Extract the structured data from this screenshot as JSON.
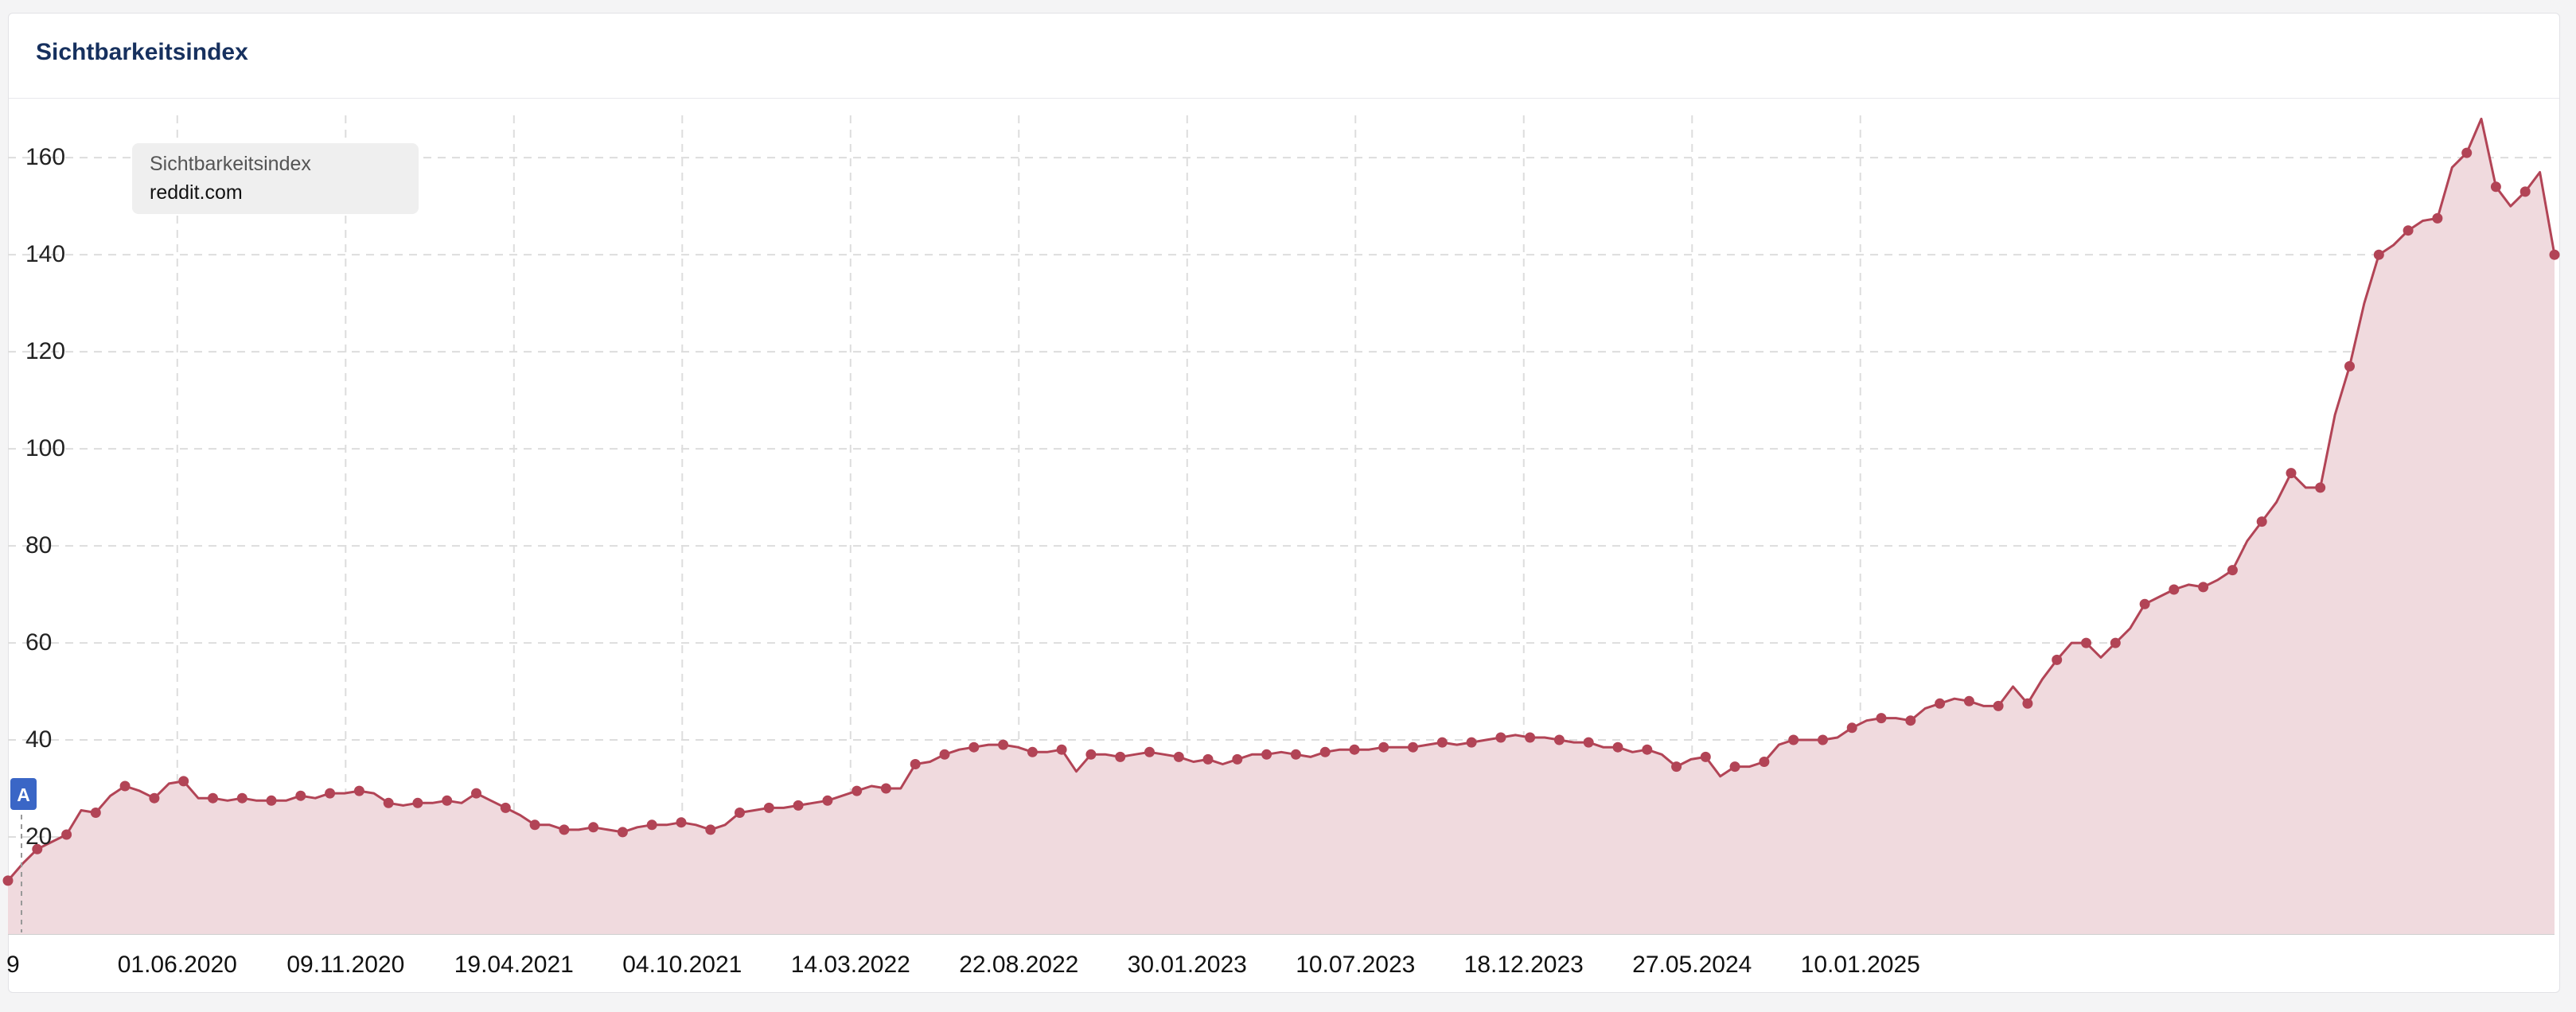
{
  "card": {
    "title": "Sichtbarkeitsindex"
  },
  "legend": {
    "line1": "Sichtbarkeitsindex",
    "line2": "reddit.com"
  },
  "event_marker": {
    "label": "A"
  },
  "colors": {
    "line": "#b24456",
    "fill": "#f0dade",
    "title": "#16305e",
    "marker": "#3a66c6"
  },
  "chart_data": {
    "type": "area",
    "title": "Sichtbarkeitsindex",
    "xlabel": "",
    "ylabel": "",
    "ylim": [
      0,
      172
    ],
    "yticks": [
      20,
      40,
      60,
      80,
      100,
      120,
      140,
      160
    ],
    "xticks": [
      "01.06.2020",
      "09.11.2020",
      "19.04.2021",
      "04.10.2021",
      "14.03.2022",
      "22.08.2022",
      "30.01.2023",
      "10.07.2023",
      "18.12.2023",
      "27.05.2024",
      "10.01.2025"
    ],
    "first_tick_partial": "9",
    "grid": true,
    "legend_placement": "top-left",
    "series": [
      {
        "name": "reddit.com",
        "points": [
          [
            "2019-12-22",
            11
          ],
          [
            "2020-01-05",
            14.5
          ],
          [
            "2020-01-19",
            17.5
          ],
          [
            "2020-02-02",
            19
          ],
          [
            "2020-02-16",
            20.5
          ],
          [
            "2020-03-01",
            25.5
          ],
          [
            "2020-03-15",
            25
          ],
          [
            "2020-03-29",
            28.5
          ],
          [
            "2020-04-12",
            30.5
          ],
          [
            "2020-04-26",
            29.5
          ],
          [
            "2020-05-10",
            28
          ],
          [
            "2020-05-24",
            31
          ],
          [
            "2020-06-07",
            31.5
          ],
          [
            "2020-06-21",
            28
          ],
          [
            "2020-07-05",
            28
          ],
          [
            "2020-07-19",
            27.5
          ],
          [
            "2020-08-02",
            28
          ],
          [
            "2020-08-16",
            27.5
          ],
          [
            "2020-08-30",
            27.5
          ],
          [
            "2020-09-13",
            27.5
          ],
          [
            "2020-09-27",
            28.5
          ],
          [
            "2020-10-11",
            28
          ],
          [
            "2020-10-25",
            29
          ],
          [
            "2020-11-08",
            29
          ],
          [
            "2020-11-22",
            29.5
          ],
          [
            "2020-12-06",
            29
          ],
          [
            "2020-12-20",
            27
          ],
          [
            "2021-01-03",
            26.5
          ],
          [
            "2021-01-17",
            27
          ],
          [
            "2021-01-31",
            27
          ],
          [
            "2021-02-14",
            27.5
          ],
          [
            "2021-02-28",
            27
          ],
          [
            "2021-03-14",
            29
          ],
          [
            "2021-03-28",
            27.5
          ],
          [
            "2021-04-11",
            26
          ],
          [
            "2021-04-25",
            24.5
          ],
          [
            "2021-05-09",
            22.5
          ],
          [
            "2021-05-23",
            22.5
          ],
          [
            "2021-06-06",
            21.5
          ],
          [
            "2021-06-20",
            21.5
          ],
          [
            "2021-07-04",
            22
          ],
          [
            "2021-07-18",
            21.5
          ],
          [
            "2021-08-01",
            21
          ],
          [
            "2021-08-15",
            22
          ],
          [
            "2021-08-29",
            22.5
          ],
          [
            "2021-09-12",
            22.5
          ],
          [
            "2021-09-26",
            23
          ],
          [
            "2021-10-10",
            22.5
          ],
          [
            "2021-10-24",
            21.5
          ],
          [
            "2021-11-07",
            22.5
          ],
          [
            "2021-11-21",
            25
          ],
          [
            "2021-12-05",
            25.5
          ],
          [
            "2021-12-19",
            26
          ],
          [
            "2022-01-02",
            26
          ],
          [
            "2022-01-16",
            26.5
          ],
          [
            "2022-01-30",
            27
          ],
          [
            "2022-02-13",
            27.5
          ],
          [
            "2022-02-27",
            28.5
          ],
          [
            "2022-03-13",
            29.5
          ],
          [
            "2022-03-27",
            30.5
          ],
          [
            "2022-04-10",
            30
          ],
          [
            "2022-04-24",
            30
          ],
          [
            "2022-05-08",
            35
          ],
          [
            "2022-05-22",
            35.5
          ],
          [
            "2022-06-05",
            37
          ],
          [
            "2022-06-19",
            38
          ],
          [
            "2022-07-03",
            38.5
          ],
          [
            "2022-07-17",
            39
          ],
          [
            "2022-07-31",
            39
          ],
          [
            "2022-08-14",
            38.5
          ],
          [
            "2022-08-28",
            37.5
          ],
          [
            "2022-09-11",
            37.5
          ],
          [
            "2022-09-25",
            38
          ],
          [
            "2022-10-09",
            33.5
          ],
          [
            "2022-10-23",
            37
          ],
          [
            "2022-11-06",
            37
          ],
          [
            "2022-11-20",
            36.5
          ],
          [
            "2022-12-04",
            37
          ],
          [
            "2022-12-18",
            37.5
          ],
          [
            "2023-01-01",
            37
          ],
          [
            "2023-01-15",
            36.5
          ],
          [
            "2023-01-29",
            35.5
          ],
          [
            "2023-02-12",
            36
          ],
          [
            "2023-02-26",
            35
          ],
          [
            "2023-03-12",
            36
          ],
          [
            "2023-03-26",
            37
          ],
          [
            "2023-04-09",
            37
          ],
          [
            "2023-04-23",
            37.5
          ],
          [
            "2023-05-07",
            37
          ],
          [
            "2023-05-21",
            36.5
          ],
          [
            "2023-06-04",
            37.5
          ],
          [
            "2023-06-18",
            38
          ],
          [
            "2023-07-02",
            38
          ],
          [
            "2023-07-16",
            38
          ],
          [
            "2023-07-30",
            38.5
          ],
          [
            "2023-08-13",
            38.5
          ],
          [
            "2023-08-27",
            38.5
          ],
          [
            "2023-09-10",
            39
          ],
          [
            "2023-09-24",
            39.5
          ],
          [
            "2023-10-08",
            39
          ],
          [
            "2023-10-22",
            39.5
          ],
          [
            "2023-11-05",
            40
          ],
          [
            "2023-11-19",
            40.5
          ],
          [
            "2023-12-03",
            41
          ],
          [
            "2023-12-17",
            40.5
          ],
          [
            "2023-12-31",
            40.5
          ],
          [
            "2024-01-14",
            40
          ],
          [
            "2024-01-28",
            39.5
          ],
          [
            "2024-02-11",
            39.5
          ],
          [
            "2024-02-25",
            38.5
          ],
          [
            "2024-03-10",
            38.5
          ],
          [
            "2024-03-24",
            37.5
          ],
          [
            "2024-04-07",
            38
          ],
          [
            "2024-04-21",
            37
          ],
          [
            "2024-05-05",
            34.5
          ],
          [
            "2024-05-19",
            36
          ],
          [
            "2024-06-02",
            36.5
          ],
          [
            "2024-06-16",
            32.5
          ],
          [
            "2024-06-30",
            34.5
          ],
          [
            "2024-07-14",
            34.5
          ],
          [
            "2024-07-28",
            35.5
          ],
          [
            "2024-08-11",
            39
          ],
          [
            "2024-08-25",
            40
          ],
          [
            "2024-09-08",
            40
          ],
          [
            "2024-09-22",
            40
          ],
          [
            "2024-10-06",
            40.5
          ],
          [
            "2024-10-20",
            42.5
          ],
          [
            "2024-11-03",
            44
          ],
          [
            "2024-11-17",
            44.5
          ],
          [
            "2024-12-01",
            44.5
          ],
          [
            "2024-12-15",
            44
          ],
          [
            "2024-12-29",
            46.5
          ],
          [
            "2025-01-12",
            47.5
          ],
          [
            "2025-01-26",
            48.5
          ],
          [
            "2025-02-09",
            48
          ],
          [
            "2025-02-23",
            47
          ],
          [
            "2025-03-09",
            47
          ],
          [
            "2025-03-23",
            51
          ],
          [
            "2025-04-06",
            47.5
          ],
          [
            "2025-04-20",
            52.5
          ],
          [
            "2025-05-04",
            56.5
          ],
          [
            "2025-05-18",
            60
          ],
          [
            "2025-06-01",
            60
          ],
          [
            "2025-06-15",
            57
          ],
          [
            "2025-06-29",
            60
          ],
          [
            "2025-07-13",
            63
          ],
          [
            "2025-07-27",
            68
          ],
          [
            "2025-08-10",
            69.5
          ],
          [
            "2025-08-24",
            71
          ],
          [
            "2025-09-07",
            72
          ],
          [
            "2025-09-21",
            71.5
          ],
          [
            "2025-10-05",
            73
          ],
          [
            "2025-10-19",
            75
          ],
          [
            "2025-11-02",
            81
          ],
          [
            "2025-11-16",
            85
          ],
          [
            "2025-11-30",
            89
          ],
          [
            "2025-12-14",
            95
          ],
          [
            "2025-12-28",
            92
          ],
          [
            "2026-01-11",
            92
          ],
          [
            "2026-01-25",
            107
          ],
          [
            "2026-02-08",
            117
          ],
          [
            "2026-02-22",
            130
          ],
          [
            "2026-03-08",
            140
          ],
          [
            "2026-03-22",
            142
          ],
          [
            "2026-04-05",
            145
          ],
          [
            "2026-04-19",
            147
          ],
          [
            "2026-05-03",
            147.5
          ],
          [
            "2026-05-17",
            158
          ],
          [
            "2026-05-31",
            161
          ],
          [
            "2026-06-14",
            168
          ],
          [
            "2026-06-28",
            154
          ],
          [
            "2026-07-12",
            150
          ],
          [
            "2026-07-26",
            153
          ],
          [
            "2026-08-09",
            157
          ],
          [
            "2026-08-23",
            140
          ]
        ]
      }
    ]
  }
}
